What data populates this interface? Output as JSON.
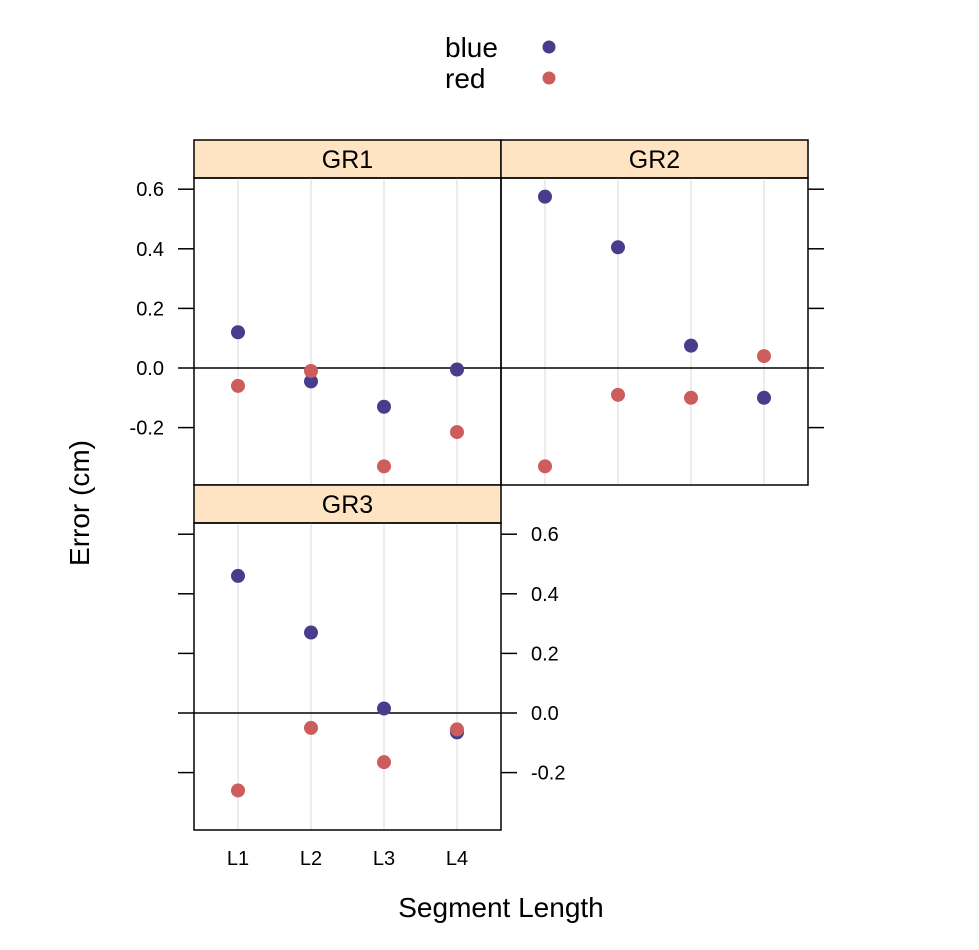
{
  "chart_data": {
    "type": "scatter",
    "xlabel": "Segment Length",
    "ylabel": "Error (cm)",
    "categories": [
      "L1",
      "L2",
      "L3",
      "L4"
    ],
    "ylim": [
      -0.33,
      0.6
    ],
    "y_ticks": [
      "0.6",
      "0.4",
      "0.2",
      "0.0",
      "-0.2"
    ],
    "y_tick_values": [
      0.6,
      0.4,
      0.2,
      0.0,
      -0.2
    ],
    "reference_line": 0.0,
    "grid": "vertical lines at each category",
    "legend": {
      "position": "top",
      "entries": [
        {
          "name": "blue",
          "color": "#483d8b"
        },
        {
          "name": "red",
          "color": "#cd5c5c"
        }
      ]
    },
    "colors": {
      "strip_background": "#ffe4c4",
      "gridline": "#e5e5e5"
    },
    "panels": [
      {
        "title": "GR1",
        "series": [
          {
            "name": "blue",
            "values": [
              0.12,
              -0.045,
              -0.13,
              -0.005
            ]
          },
          {
            "name": "red",
            "values": [
              -0.06,
              -0.01,
              -0.33,
              -0.215
            ]
          }
        ]
      },
      {
        "title": "GR2",
        "series": [
          {
            "name": "blue",
            "values": [
              0.575,
              0.405,
              0.075,
              -0.1
            ]
          },
          {
            "name": "red",
            "values": [
              -0.33,
              -0.09,
              -0.1,
              0.04
            ]
          }
        ]
      },
      {
        "title": "GR3",
        "series": [
          {
            "name": "blue",
            "values": [
              0.46,
              0.27,
              0.015,
              -0.065
            ]
          },
          {
            "name": "red",
            "values": [
              -0.26,
              -0.05,
              -0.165,
              -0.055
            ]
          }
        ]
      }
    ]
  }
}
